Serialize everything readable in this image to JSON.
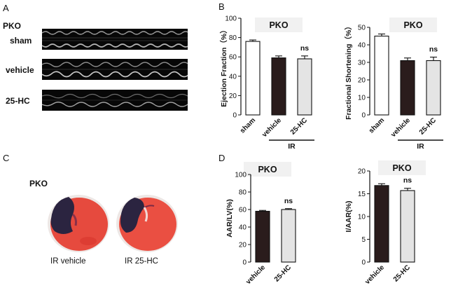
{
  "panels": {
    "a": {
      "letter": "A",
      "group": "PKO",
      "rows": [
        {
          "label": "sham"
        },
        {
          "label": "vehicle"
        },
        {
          "label": "25-HC"
        }
      ]
    },
    "b": {
      "letter": "B"
    },
    "c": {
      "letter": "C",
      "group": "PKO",
      "captions": [
        "IR vehicle",
        "IR 25-HC"
      ]
    },
    "d": {
      "letter": "D"
    }
  },
  "colors": {
    "sham": "#ffffff",
    "vehicle": "#2a1c1c",
    "hc25": "#e4e4e4",
    "infarct_red": "#e64a3e",
    "blue_stain": "#2b2440"
  },
  "chart_data": [
    {
      "id": "ef",
      "type": "bar",
      "title": "PKO",
      "ylabel": "Ejection Fraction（%）",
      "ylim": [
        0,
        100
      ],
      "yticks": [
        0,
        20,
        40,
        60,
        80,
        100
      ],
      "categories": [
        "sham",
        "vehicle",
        "25-HC"
      ],
      "values": [
        76,
        59,
        58
      ],
      "errors": [
        1.5,
        2,
        3
      ],
      "bar_colors": [
        "#ffffff",
        "#2a1c1c",
        "#e4e4e4"
      ],
      "annotations": [
        {
          "category": "25-HC",
          "text": "ns"
        }
      ],
      "group_label": {
        "text": "IR",
        "categories": [
          "vehicle",
          "25-HC"
        ]
      }
    },
    {
      "id": "fs",
      "type": "bar",
      "title": "PKO",
      "ylabel": "Fractional Shortening（%）",
      "ylim": [
        0,
        50
      ],
      "yticks": [
        0,
        10,
        20,
        30,
        40,
        50
      ],
      "categories": [
        "sham",
        "vehicle",
        "25-HC"
      ],
      "values": [
        45,
        31,
        31
      ],
      "errors": [
        1.2,
        1.5,
        2
      ],
      "bar_colors": [
        "#ffffff",
        "#2a1c1c",
        "#e4e4e4"
      ],
      "annotations": [
        {
          "category": "25-HC",
          "text": "ns"
        }
      ],
      "group_label": {
        "text": "IR",
        "categories": [
          "vehicle",
          "25-HC"
        ]
      }
    },
    {
      "id": "aarlv",
      "type": "bar",
      "title": "PKO",
      "ylabel": "AAR/LV(%)",
      "ylim": [
        0,
        100
      ],
      "yticks": [
        0,
        20,
        40,
        60,
        80,
        100
      ],
      "categories": [
        "vehicle",
        "25-HC"
      ],
      "values": [
        58,
        60
      ],
      "errors": [
        1,
        1
      ],
      "bar_colors": [
        "#2a1c1c",
        "#e4e4e4"
      ],
      "annotations": [
        {
          "category": "25-HC",
          "text": "ns"
        }
      ]
    },
    {
      "id": "iaar",
      "type": "bar",
      "title": "PKO",
      "ylabel": "I/AAR(%)",
      "ylim": [
        0,
        20
      ],
      "yticks": [
        0,
        5,
        10,
        15,
        20
      ],
      "categories": [
        "vehicle",
        "25-HC"
      ],
      "values": [
        16.8,
        15.7
      ],
      "errors": [
        0.4,
        0.5
      ],
      "bar_colors": [
        "#2a1c1c",
        "#e4e4e4"
      ],
      "annotations": [
        {
          "category": "25-HC",
          "text": "ns"
        }
      ]
    }
  ]
}
